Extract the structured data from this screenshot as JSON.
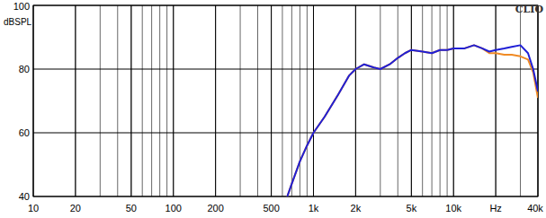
{
  "chart_data": {
    "type": "line",
    "y_label": "dBSPL",
    "annotation": "CLIO",
    "log": "x",
    "grid": true,
    "xlim": [
      10,
      40000
    ],
    "ylim": [
      40,
      100
    ],
    "xticks": [
      10,
      20,
      50,
      100,
      200,
      500,
      {
        "value": 1000,
        "label": "1k"
      },
      {
        "value": 2000,
        "label": "2k"
      },
      {
        "value": 5000,
        "label": "5k"
      },
      {
        "value": 10000,
        "label": "10k"
      },
      {
        "value": 20000,
        "label": "Hz"
      },
      {
        "value": 40000,
        "label": "40k"
      }
    ],
    "yticks": [
      40,
      60,
      80,
      100
    ],
    "x": [
      650,
      700,
      800,
      900,
      1000,
      1200,
      1500,
      1800,
      2000,
      2300,
      2700,
      3000,
      3500,
      4000,
      4500,
      5000,
      6000,
      7000,
      8000,
      9000,
      10000,
      12000,
      14000,
      16000,
      18000,
      20000,
      23000,
      26000,
      30000,
      34000,
      37000,
      40000
    ],
    "series": [
      {
        "color": "#f08a24",
        "values": [
          40,
          44,
          51,
          56,
          60,
          65,
          72,
          78,
          80,
          81.5,
          80.5,
          80,
          81.5,
          83.5,
          85,
          86,
          85.5,
          85,
          86,
          86,
          86.5,
          86.5,
          87.5,
          86.5,
          85,
          85,
          84.5,
          84.5,
          84,
          83,
          79,
          71
        ]
      },
      {
        "color": "#1f1fd6",
        "values": [
          40,
          44,
          51,
          56,
          60,
          65,
          72,
          78,
          80,
          81.5,
          80.5,
          80,
          81.5,
          83.5,
          85,
          86,
          85.5,
          85,
          86,
          86,
          86.5,
          86.5,
          87.5,
          86.5,
          85.5,
          86,
          86.5,
          87,
          87.5,
          85,
          80,
          73
        ]
      }
    ]
  }
}
